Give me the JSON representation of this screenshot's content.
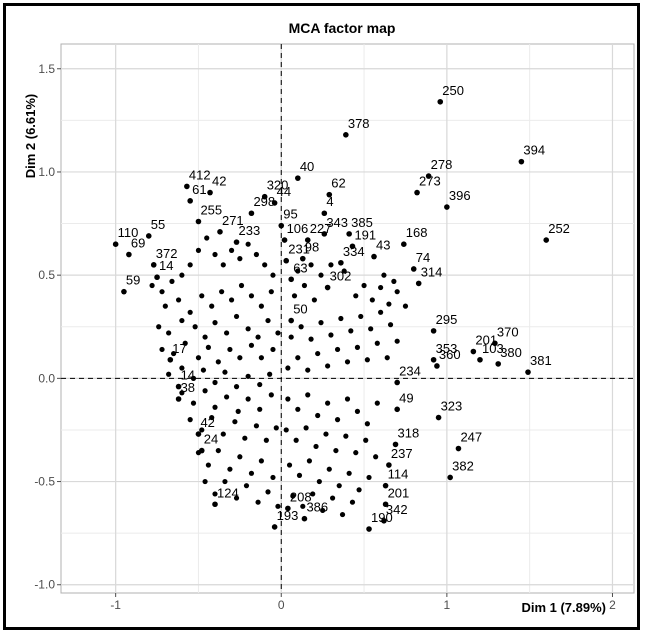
{
  "chart_data": {
    "type": "scatter",
    "title": "MCA factor map",
    "xlabel": "Dim 1 (7.89%)",
    "ylabel": "Dim 2 (6.61%)",
    "xlim": [
      -1.0,
      2.0
    ],
    "ylim": [
      -1.0,
      1.5
    ],
    "xticks": [
      "-1",
      "0",
      "1",
      "2"
    ],
    "xtick_values": [
      -1,
      0,
      1,
      2
    ],
    "yticks": [
      "-1.0",
      "-0.5",
      "0.0",
      "0.5",
      "1.0",
      "1.5"
    ],
    "ytick_values": [
      -1.0,
      -0.5,
      0.0,
      0.5,
      1.0,
      1.5
    ],
    "grid": true,
    "reference_lines": [
      {
        "axis": "x",
        "value": 0,
        "style": "dashed"
      },
      {
        "axis": "y",
        "value": 0,
        "style": "dashed"
      }
    ],
    "point_color": "#000000",
    "points": [
      {
        "label": "250",
        "x": 0.96,
        "y": 1.34
      },
      {
        "label": "394",
        "x": 1.45,
        "y": 1.05
      },
      {
        "label": "378",
        "x": 0.39,
        "y": 1.18
      },
      {
        "label": "278",
        "x": 0.89,
        "y": 0.98
      },
      {
        "label": "396",
        "x": 1.0,
        "y": 0.83
      },
      {
        "label": "273",
        "x": 0.82,
        "y": 0.9
      },
      {
        "label": "252",
        "x": 1.6,
        "y": 0.67
      },
      {
        "label": "40",
        "x": 0.1,
        "y": 0.97
      },
      {
        "label": "62",
        "x": 0.29,
        "y": 0.89
      },
      {
        "label": "4",
        "x": 0.26,
        "y": 0.8
      },
      {
        "label": "320",
        "x": -0.1,
        "y": 0.88
      },
      {
        "label": "44",
        "x": -0.04,
        "y": 0.85
      },
      {
        "label": "412",
        "x": -0.57,
        "y": 0.93
      },
      {
        "label": "42",
        "x": -0.43,
        "y": 0.9
      },
      {
        "label": "298",
        "x": -0.18,
        "y": 0.8
      },
      {
        "label": "95",
        "x": 0.0,
        "y": 0.74
      },
      {
        "label": "343",
        "x": 0.26,
        "y": 0.7
      },
      {
        "label": "385",
        "x": 0.41,
        "y": 0.7
      },
      {
        "label": "168",
        "x": 0.74,
        "y": 0.65
      },
      {
        "label": "191",
        "x": 0.43,
        "y": 0.64
      },
      {
        "label": "43",
        "x": 0.56,
        "y": 0.59
      },
      {
        "label": "334",
        "x": 0.36,
        "y": 0.56
      },
      {
        "label": "74",
        "x": 0.8,
        "y": 0.53
      },
      {
        "label": "110",
        "x": -1.0,
        "y": 0.65
      },
      {
        "label": "55",
        "x": -0.8,
        "y": 0.69
      },
      {
        "label": "69",
        "x": -0.92,
        "y": 0.6
      },
      {
        "label": "372",
        "x": -0.77,
        "y": 0.55
      },
      {
        "label": "59",
        "x": -0.95,
        "y": 0.42
      },
      {
        "label": "61",
        "x": -0.55,
        "y": 0.86
      },
      {
        "label": "255",
        "x": -0.5,
        "y": 0.76
      },
      {
        "label": "271",
        "x": -0.37,
        "y": 0.71
      },
      {
        "label": "233",
        "x": -0.27,
        "y": 0.66
      },
      {
        "label": "106",
        "x": 0.02,
        "y": 0.67
      },
      {
        "label": "227",
        "x": 0.16,
        "y": 0.67
      },
      {
        "label": "231",
        "x": 0.03,
        "y": 0.57
      },
      {
        "label": "98",
        "x": 0.13,
        "y": 0.58
      },
      {
        "label": "63",
        "x": 0.06,
        "y": 0.48
      },
      {
        "label": "302",
        "x": 0.28,
        "y": 0.44
      },
      {
        "label": "314",
        "x": 0.83,
        "y": 0.46
      },
      {
        "label": "295",
        "x": 0.92,
        "y": 0.23
      },
      {
        "label": "370",
        "x": 1.29,
        "y": 0.17
      },
      {
        "label": "201",
        "x": 1.16,
        "y": 0.13
      },
      {
        "label": "103",
        "x": 1.2,
        "y": 0.09
      },
      {
        "label": "380",
        "x": 1.31,
        "y": 0.07
      },
      {
        "label": "381",
        "x": 1.49,
        "y": 0.03
      },
      {
        "label": "353",
        "x": 0.92,
        "y": 0.09
      },
      {
        "label": "360",
        "x": 0.94,
        "y": 0.06
      },
      {
        "label": "50",
        "x": 0.06,
        "y": 0.28
      },
      {
        "label": "234",
        "x": 0.7,
        "y": -0.02
      },
      {
        "label": "49",
        "x": 0.7,
        "y": -0.15
      },
      {
        "label": "323",
        "x": 0.95,
        "y": -0.19
      },
      {
        "label": "318",
        "x": 0.69,
        "y": -0.32
      },
      {
        "label": "247",
        "x": 1.07,
        "y": -0.34
      },
      {
        "label": "382",
        "x": 1.02,
        "y": -0.48
      },
      {
        "label": "237",
        "x": 0.65,
        "y": -0.42
      },
      {
        "label": "114",
        "x": 0.63,
        "y": -0.52
      },
      {
        "label": "201",
        "x": 0.63,
        "y": -0.61
      },
      {
        "label": "342",
        "x": 0.62,
        "y": -0.69
      },
      {
        "label": "190",
        "x": 0.53,
        "y": -0.73
      },
      {
        "label": "386",
        "x": 0.14,
        "y": -0.68
      },
      {
        "label": "208",
        "x": 0.04,
        "y": -0.63
      },
      {
        "label": "193",
        "x": -0.04,
        "y": -0.72
      },
      {
        "label": "124",
        "x": -0.4,
        "y": -0.61
      },
      {
        "label": "42",
        "x": -0.5,
        "y": -0.27
      },
      {
        "label": "24",
        "x": -0.48,
        "y": -0.35
      },
      {
        "label": "14",
        "x": -0.62,
        "y": -0.04
      },
      {
        "label": "38",
        "x": -0.62,
        "y": -0.1
      },
      {
        "label": "17",
        "x": -0.67,
        "y": 0.09
      },
      {
        "label": "14",
        "x": -0.75,
        "y": 0.49
      }
    ],
    "cloud_points": [
      [
        -0.78,
        0.45
      ],
      [
        -0.72,
        0.42
      ],
      [
        -0.66,
        0.47
      ],
      [
        -0.6,
        0.5
      ],
      [
        -0.55,
        0.55
      ],
      [
        -0.5,
        0.62
      ],
      [
        -0.45,
        0.68
      ],
      [
        -0.4,
        0.6
      ],
      [
        -0.35,
        0.55
      ],
      [
        -0.3,
        0.62
      ],
      [
        -0.25,
        0.58
      ],
      [
        -0.2,
        0.65
      ],
      [
        -0.15,
        0.6
      ],
      [
        -0.1,
        0.55
      ],
      [
        -0.05,
        0.5
      ],
      [
        -0.7,
        0.35
      ],
      [
        -0.62,
        0.38
      ],
      [
        -0.55,
        0.32
      ],
      [
        -0.48,
        0.4
      ],
      [
        -0.42,
        0.35
      ],
      [
        -0.36,
        0.42
      ],
      [
        -0.3,
        0.38
      ],
      [
        -0.24,
        0.45
      ],
      [
        -0.18,
        0.4
      ],
      [
        -0.12,
        0.35
      ],
      [
        -0.06,
        0.42
      ],
      [
        -0.74,
        0.25
      ],
      [
        -0.68,
        0.22
      ],
      [
        -0.6,
        0.28
      ],
      [
        -0.52,
        0.25
      ],
      [
        -0.46,
        0.2
      ],
      [
        -0.4,
        0.27
      ],
      [
        -0.33,
        0.22
      ],
      [
        -0.27,
        0.3
      ],
      [
        -0.2,
        0.24
      ],
      [
        -0.14,
        0.2
      ],
      [
        -0.08,
        0.28
      ],
      [
        -0.02,
        0.22
      ],
      [
        -0.72,
        0.14
      ],
      [
        -0.65,
        0.12
      ],
      [
        -0.58,
        0.17
      ],
      [
        -0.5,
        0.1
      ],
      [
        -0.44,
        0.15
      ],
      [
        -0.38,
        0.08
      ],
      [
        -0.31,
        0.14
      ],
      [
        -0.25,
        0.1
      ],
      [
        -0.18,
        0.16
      ],
      [
        -0.12,
        0.1
      ],
      [
        -0.05,
        0.14
      ],
      [
        -0.68,
        0.02
      ],
      [
        -0.6,
        0.05
      ],
      [
        -0.53,
        0.0
      ],
      [
        -0.47,
        0.04
      ],
      [
        -0.4,
        -0.02
      ],
      [
        -0.34,
        0.03
      ],
      [
        -0.27,
        -0.04
      ],
      [
        -0.2,
        0.01
      ],
      [
        -0.13,
        -0.03
      ],
      [
        -0.07,
        0.02
      ],
      [
        -0.6,
        -0.07
      ],
      [
        -0.53,
        -0.12
      ],
      [
        -0.46,
        -0.06
      ],
      [
        -0.4,
        -0.14
      ],
      [
        -0.33,
        -0.09
      ],
      [
        -0.26,
        -0.16
      ],
      [
        -0.2,
        -0.1
      ],
      [
        -0.13,
        -0.15
      ],
      [
        -0.06,
        -0.08
      ],
      [
        -0.55,
        -0.2
      ],
      [
        -0.48,
        -0.25
      ],
      [
        -0.42,
        -0.19
      ],
      [
        -0.35,
        -0.27
      ],
      [
        -0.28,
        -0.21
      ],
      [
        -0.22,
        -0.29
      ],
      [
        -0.15,
        -0.23
      ],
      [
        -0.09,
        -0.3
      ],
      [
        -0.03,
        -0.24
      ],
      [
        -0.5,
        -0.36
      ],
      [
        -0.44,
        -0.42
      ],
      [
        -0.38,
        -0.35
      ],
      [
        -0.31,
        -0.44
      ],
      [
        -0.25,
        -0.38
      ],
      [
        -0.18,
        -0.46
      ],
      [
        -0.12,
        -0.4
      ],
      [
        -0.05,
        -0.48
      ],
      [
        -0.46,
        -0.5
      ],
      [
        -0.4,
        -0.56
      ],
      [
        -0.34,
        -0.5
      ],
      [
        -0.27,
        -0.58
      ],
      [
        -0.21,
        -0.52
      ],
      [
        -0.14,
        -0.6
      ],
      [
        -0.08,
        -0.55
      ],
      [
        -0.02,
        -0.62
      ],
      [
        0.04,
        -0.1
      ],
      [
        0.1,
        -0.15
      ],
      [
        0.16,
        -0.08
      ],
      [
        0.22,
        -0.18
      ],
      [
        0.28,
        -0.12
      ],
      [
        0.34,
        -0.2
      ],
      [
        0.4,
        -0.1
      ],
      [
        0.46,
        -0.16
      ],
      [
        0.52,
        -0.22
      ],
      [
        0.58,
        -0.12
      ],
      [
        0.03,
        -0.25
      ],
      [
        0.09,
        -0.3
      ],
      [
        0.15,
        -0.24
      ],
      [
        0.21,
        -0.33
      ],
      [
        0.27,
        -0.27
      ],
      [
        0.33,
        -0.35
      ],
      [
        0.39,
        -0.28
      ],
      [
        0.45,
        -0.36
      ],
      [
        0.51,
        -0.3
      ],
      [
        0.57,
        -0.38
      ],
      [
        0.05,
        -0.42
      ],
      [
        0.11,
        -0.47
      ],
      [
        0.17,
        -0.4
      ],
      [
        0.23,
        -0.5
      ],
      [
        0.29,
        -0.44
      ],
      [
        0.35,
        -0.52
      ],
      [
        0.41,
        -0.46
      ],
      [
        0.47,
        -0.54
      ],
      [
        0.53,
        -0.48
      ],
      [
        0.07,
        -0.57
      ],
      [
        0.13,
        -0.62
      ],
      [
        0.19,
        -0.56
      ],
      [
        0.25,
        -0.64
      ],
      [
        0.31,
        -0.58
      ],
      [
        0.37,
        -0.66
      ],
      [
        0.43,
        -0.6
      ],
      [
        0.04,
        0.05
      ],
      [
        0.1,
        0.1
      ],
      [
        0.16,
        0.04
      ],
      [
        0.22,
        0.12
      ],
      [
        0.28,
        0.06
      ],
      [
        0.34,
        0.14
      ],
      [
        0.4,
        0.08
      ],
      [
        0.46,
        0.15
      ],
      [
        0.52,
        0.09
      ],
      [
        0.58,
        0.17
      ],
      [
        0.64,
        0.1
      ],
      [
        0.7,
        0.18
      ],
      [
        0.06,
        0.2
      ],
      [
        0.12,
        0.25
      ],
      [
        0.18,
        0.19
      ],
      [
        0.24,
        0.27
      ],
      [
        0.3,
        0.21
      ],
      [
        0.36,
        0.29
      ],
      [
        0.42,
        0.23
      ],
      [
        0.48,
        0.3
      ],
      [
        0.54,
        0.24
      ],
      [
        0.6,
        0.32
      ],
      [
        0.66,
        0.26
      ],
      [
        0.45,
        0.4
      ],
      [
        0.5,
        0.45
      ],
      [
        0.55,
        0.38
      ],
      [
        0.6,
        0.44
      ],
      [
        0.65,
        0.36
      ],
      [
        0.7,
        0.42
      ],
      [
        0.75,
        0.35
      ],
      [
        0.62,
        0.5
      ],
      [
        0.68,
        0.47
      ],
      [
        0.08,
        0.4
      ],
      [
        0.14,
        0.45
      ],
      [
        0.2,
        0.38
      ],
      [
        0.1,
        0.52
      ],
      [
        0.18,
        0.55
      ],
      [
        0.24,
        0.5
      ],
      [
        0.3,
        0.55
      ],
      [
        0.38,
        0.52
      ]
    ]
  }
}
